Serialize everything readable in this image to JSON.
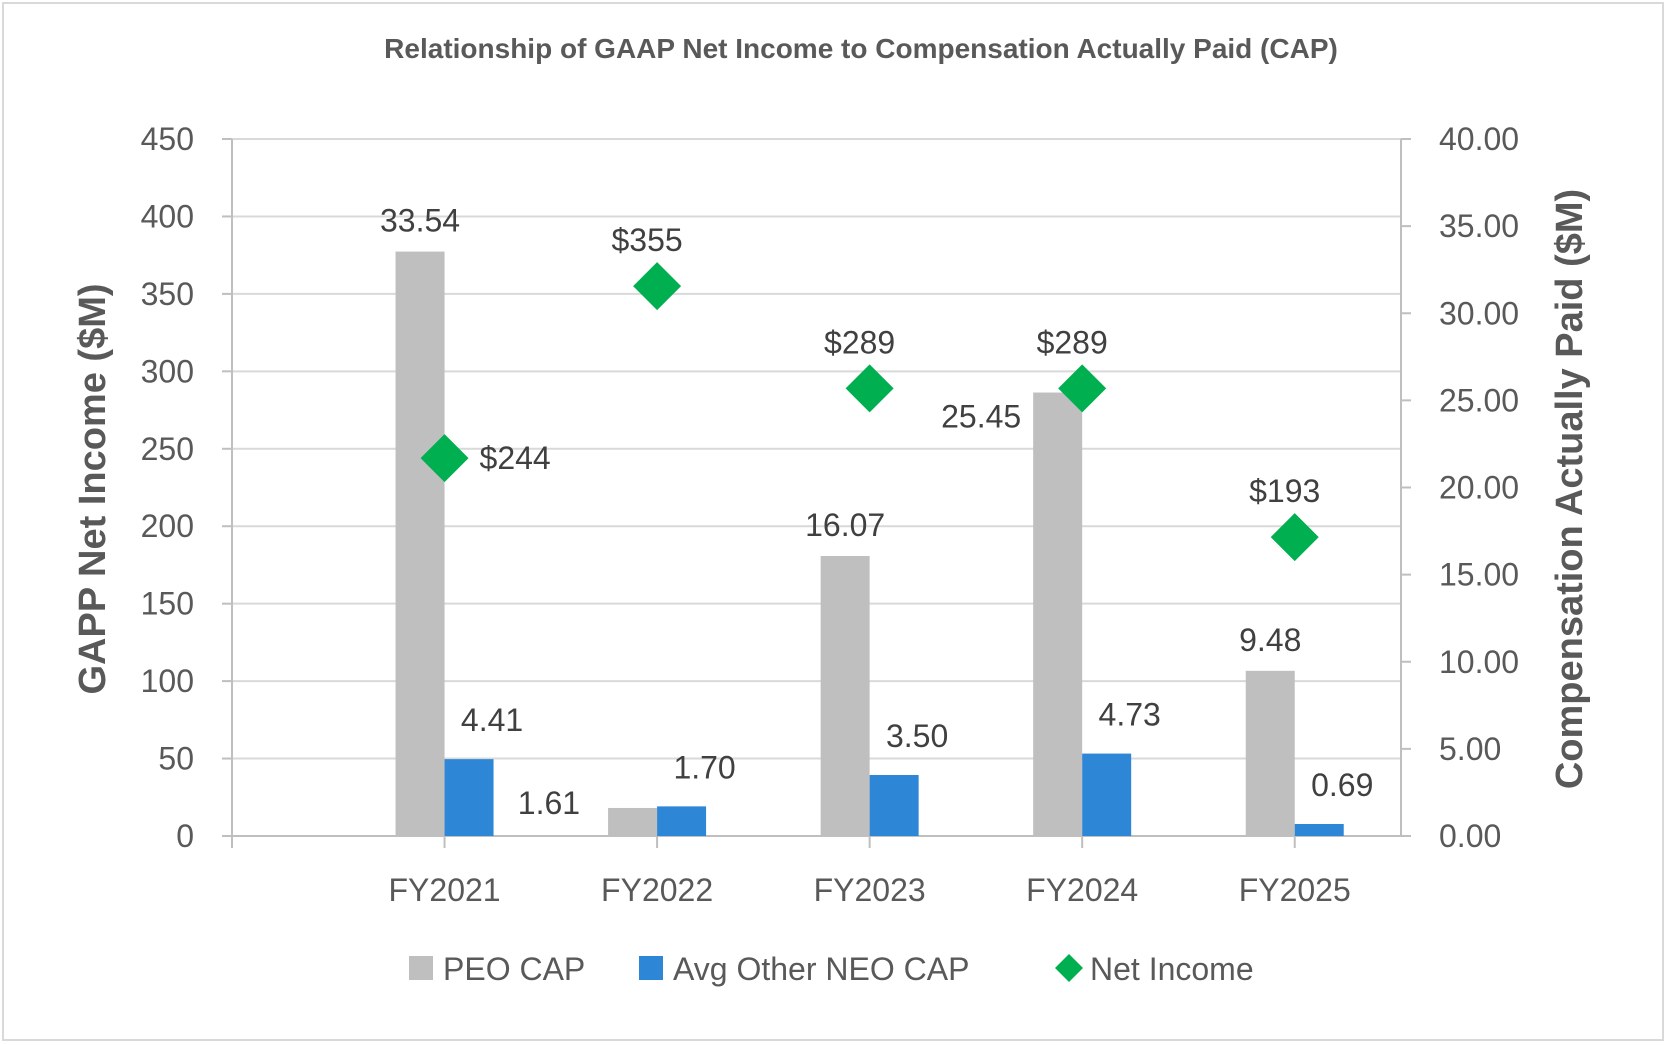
{
  "chart_data": {
    "type": "bar",
    "title": "Relationship of GAAP Net Income to Compensation Actually Paid (CAP)",
    "categories": [
      "FY2021",
      "FY2022",
      "FY2023",
      "FY2024",
      "FY2025"
    ],
    "y_left": {
      "label": "GAPP Net Income ($M)",
      "range": [
        0,
        450
      ],
      "ticks": [
        "0",
        "50",
        "100",
        "150",
        "200",
        "250",
        "300",
        "350",
        "400",
        "450"
      ]
    },
    "y_right": {
      "label": "Compensation Actually Paid ($M)",
      "range": [
        0,
        40
      ],
      "ticks": [
        "0.00",
        "5.00",
        "10.00",
        "15.00",
        "20.00",
        "25.00",
        "30.00",
        "35.00",
        "40.00"
      ]
    },
    "series": [
      {
        "name": "PEO CAP",
        "type": "bar",
        "axis": "right",
        "color": "#bfbfbf",
        "values": [
          33.54,
          1.61,
          16.07,
          25.45,
          9.48
        ],
        "labels": [
          "33.54",
          "1.61",
          "16.07",
          "25.45",
          "9.48"
        ]
      },
      {
        "name": "Avg Other NEO CAP",
        "type": "bar",
        "axis": "right",
        "color": "#2e86d6",
        "values": [
          4.41,
          1.7,
          3.5,
          4.73,
          0.69
        ],
        "labels": [
          "4.41",
          "1.70",
          "3.50",
          "4.73",
          "0.69"
        ]
      },
      {
        "name": "Net Income",
        "type": "scatter",
        "marker": "diamond",
        "axis": "left",
        "color": "#00b050",
        "values": [
          244,
          355,
          289,
          289,
          193
        ],
        "labels": [
          "$244",
          "$355",
          "$289",
          "$289",
          "$193"
        ]
      }
    ],
    "grid": true,
    "legend_position": "bottom"
  }
}
